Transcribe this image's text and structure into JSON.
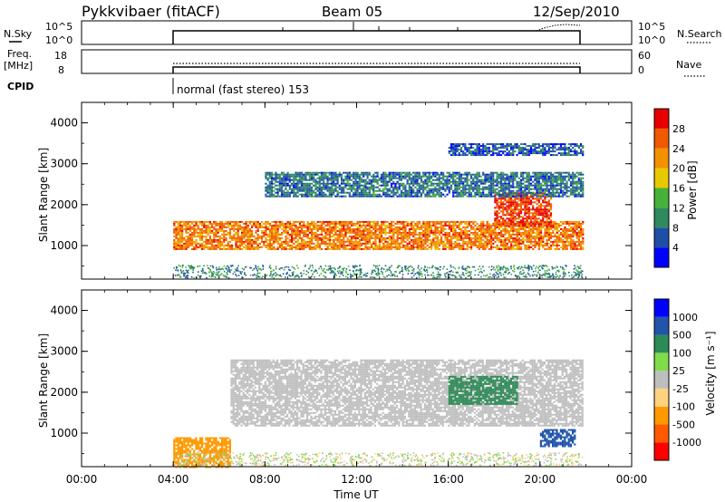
{
  "header": {
    "station": "Pykkvibaer (fitACF)",
    "beam": "Beam 05",
    "date": "12/Sep/2010"
  },
  "params": {
    "nsky_label": "N.Sky",
    "nsearch_label": "N.Search",
    "freq_label": "Freq.",
    "freq_unit": "[MHz]",
    "nave_label": "Nave",
    "cpid_label": "CPID",
    "cpid_value": "normal (fast stereo) 153",
    "nsky_ticks": [
      "10^5",
      "10^0"
    ],
    "nsearch_ticks": [
      "10^5",
      "10^0"
    ],
    "freq_ticks": [
      "18",
      "8"
    ],
    "nave_ticks": [
      "60",
      "0"
    ]
  },
  "colors": {
    "power": [
      "#0000ff",
      "#1e4fa6",
      "#2f8a5e",
      "#47b23a",
      "#e8c800",
      "#f49100",
      "#f05a00",
      "#e60000"
    ],
    "velocity": [
      "#ff0000",
      "#ff5a00",
      "#ff9900",
      "#ffd27f",
      "#bebebe",
      "#7fdc4a",
      "#2e8b57",
      "#2255aa",
      "#0000ff"
    ]
  },
  "chart_data": [
    {
      "type": "heatmap",
      "title": "",
      "xlabel": "",
      "ylabel": "Slant Range [km]",
      "xlim": [
        "00:00",
        "00:00"
      ],
      "ylim": [
        180,
        4500
      ],
      "x_ticks": [
        "00:00",
        "04:00",
        "08:00",
        "12:00",
        "16:00",
        "20:00",
        "00:00"
      ],
      "y_ticks": [
        "1000",
        "2000",
        "3000",
        "4000"
      ],
      "colorbar_label": "Power [dB]",
      "colorbar_ticks": [
        "4",
        "8",
        "12",
        "16",
        "20",
        "24",
        "28"
      ],
      "data_start_ut": "04:00",
      "data_end_ut": "21:50",
      "bands": [
        {
          "from_ut": "04:00",
          "to_ut": "21:50",
          "range_km_from": 900,
          "range_km_to": 1600,
          "power_db": 24
        },
        {
          "from_ut": "18:00",
          "to_ut": "20:30",
          "range_km_from": 1500,
          "range_km_to": 2300,
          "power_db": 28
        },
        {
          "from_ut": "08:00",
          "to_ut": "21:50",
          "range_km_from": 2200,
          "range_km_to": 2800,
          "power_db": 8
        },
        {
          "from_ut": "16:00",
          "to_ut": "21:50",
          "range_km_from": 3200,
          "range_km_to": 3500,
          "power_db": 6
        }
      ]
    },
    {
      "type": "heatmap",
      "title": "",
      "xlabel": "Time UT",
      "ylabel": "Slant Range [km]",
      "xlim": [
        "00:00",
        "00:00"
      ],
      "ylim": [
        180,
        4500
      ],
      "x_ticks": [
        "00:00",
        "04:00",
        "08:00",
        "12:00",
        "16:00",
        "20:00",
        "00:00"
      ],
      "y_ticks": [
        "1000",
        "2000",
        "3000",
        "4000"
      ],
      "colorbar_label": "Velocity [m s⁻¹]",
      "colorbar_ticks": [
        "1000",
        "500",
        "100",
        "25",
        "-25",
        "-100",
        "-500",
        "-1000"
      ],
      "data_start_ut": "04:00",
      "data_end_ut": "21:50",
      "bands": [
        {
          "from_ut": "06:30",
          "to_ut": "21:50",
          "range_km_from": 1200,
          "range_km_to": 2800,
          "velocity_ms": 0
        },
        {
          "from_ut": "16:00",
          "to_ut": "19:00",
          "range_km_from": 1700,
          "range_km_to": 2400,
          "velocity_ms": 200
        },
        {
          "from_ut": "04:00",
          "to_ut": "06:30",
          "range_km_from": 180,
          "range_km_to": 900,
          "velocity_ms": -100
        },
        {
          "from_ut": "20:00",
          "to_ut": "21:30",
          "range_km_from": 700,
          "range_km_to": 1100,
          "velocity_ms": 800
        }
      ]
    }
  ]
}
